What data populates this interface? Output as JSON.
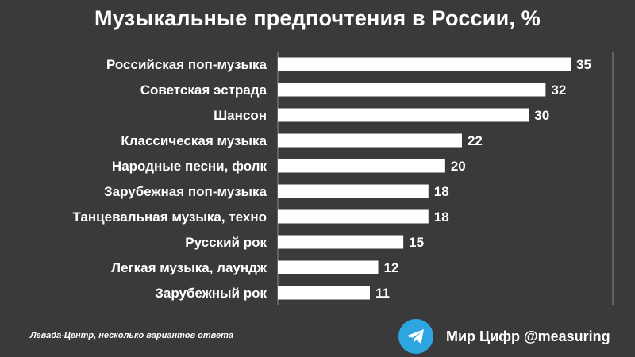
{
  "title": "Музыкальные  предпочтения в России, %",
  "source": "Левада-Центр, несколько вариантов ответа",
  "brand": {
    "name": "Мир Цифр @measuring",
    "icon": "telegram-icon",
    "icon_color": "#2ca5e0"
  },
  "colors": {
    "background": "#3a3a3a",
    "bar": "#ffffff",
    "text": "#ffffff"
  },
  "chart_data": {
    "type": "bar",
    "orientation": "horizontal",
    "title": "Музыкальные  предпочтения в России, %",
    "xlabel": "",
    "ylabel": "",
    "categories": [
      "Российская поп-музыка",
      "Советская эстрада",
      "Шансон",
      "Классическая музыка",
      "Народные песни, фолк",
      "Зарубежная поп-музыка",
      "Танцевальная музыка, техно",
      "Русский рок",
      "Легкая музыка, лаундж",
      "Зарубежный рок"
    ],
    "values": [
      35,
      32,
      30,
      22,
      20,
      18,
      18,
      15,
      12,
      11
    ],
    "xlim": [
      0,
      40
    ],
    "grid": false,
    "data_labels": true
  }
}
